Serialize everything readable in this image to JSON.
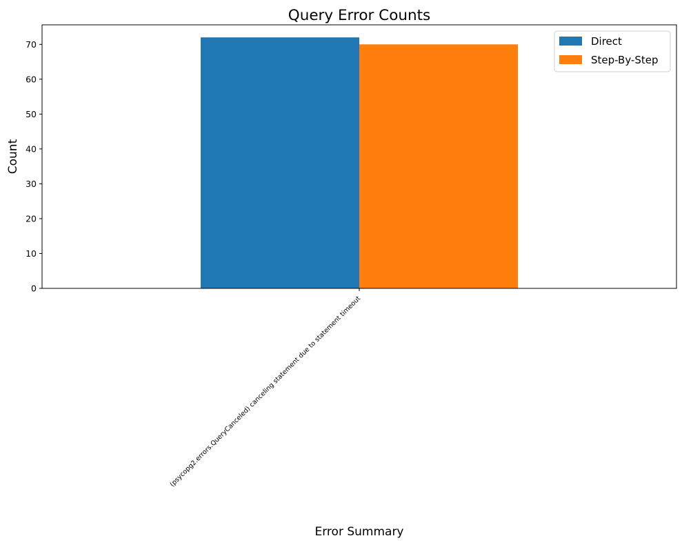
{
  "chart_data": {
    "type": "bar",
    "title": "Query Error Counts",
    "xlabel": "Error Summary",
    "ylabel": "Count",
    "categories": [
      "(psycopg2.errors.QueryCanceled) canceling statement due to statement timeout"
    ],
    "series": [
      {
        "name": "Direct",
        "values": [
          72
        ],
        "color": "#1f77b4"
      },
      {
        "name": "Step-By-Step",
        "values": [
          70
        ],
        "color": "#ff7f0e"
      }
    ],
    "ylim": [
      0,
      75.6
    ],
    "yticks": [
      0,
      10,
      20,
      30,
      40,
      50,
      60,
      70
    ],
    "grid": false,
    "legend_position": "top-right"
  }
}
